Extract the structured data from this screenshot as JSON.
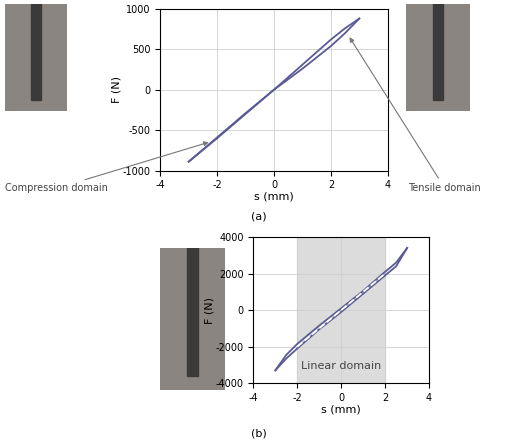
{
  "chart_data": [
    {
      "type": "line",
      "title": "(a)",
      "x_label": "s (mm)",
      "y_label": "F (N)",
      "xlim": [
        -4,
        4
      ],
      "xticks": [
        -4,
        -2,
        0,
        2,
        4
      ],
      "ylim": [
        -1000,
        1000
      ],
      "yticks": [
        -1000,
        -500,
        0,
        500,
        1000
      ],
      "grid": true,
      "series": [
        {
          "color": "#5a5a96",
          "line_style": "solid",
          "x": [
            -3,
            -2,
            -1,
            0,
            1,
            2,
            2.5,
            3
          ],
          "values": [
            -890,
            -600,
            -300,
            0,
            310,
            620,
            760,
            880
          ]
        },
        {
          "color": "#5a5a96",
          "line_style": "solid",
          "x": [
            3,
            2.5,
            2,
            1,
            0,
            -1,
            -2,
            -3
          ],
          "values": [
            880,
            700,
            540,
            260,
            0,
            -290,
            -590,
            -890
          ]
        }
      ],
      "annotations": [
        {
          "text": "Compression domain",
          "x": -2.2,
          "y": -640
        },
        {
          "text": "Tensile domain",
          "x": 2.6,
          "y": 680
        }
      ]
    },
    {
      "type": "line",
      "title": "(b)",
      "x_label": "s (mm)",
      "y_label": "F (N)",
      "xlim": [
        -4,
        4
      ],
      "xticks": [
        -4,
        -2,
        0,
        2,
        4
      ],
      "ylim": [
        -4000,
        4000
      ],
      "yticks": [
        -4000,
        -2000,
        0,
        2000,
        4000
      ],
      "grid": true,
      "span": [
        -2,
        2
      ],
      "span_label": "Linear domain",
      "series": [
        {
          "color": "#5a5a96",
          "line_style": "solid",
          "x": [
            -3,
            -2.5,
            -2,
            -1,
            0,
            1,
            2,
            2.5,
            3
          ],
          "values": [
            -3300,
            -2450,
            -1850,
            -850,
            100,
            1050,
            2100,
            2600,
            3400
          ]
        },
        {
          "color": "#5a5a96",
          "line_style": "solid",
          "x": [
            3,
            2.5,
            2,
            1,
            0,
            -1,
            -2,
            -2.5,
            -3
          ],
          "values": [
            3400,
            2400,
            1900,
            900,
            -100,
            -1050,
            -2100,
            -2650,
            -3300
          ]
        },
        {
          "color": "#ffffff",
          "line_style": "dashed",
          "x": [
            -2,
            2
          ],
          "values": [
            -2000,
            2000
          ]
        }
      ]
    }
  ]
}
